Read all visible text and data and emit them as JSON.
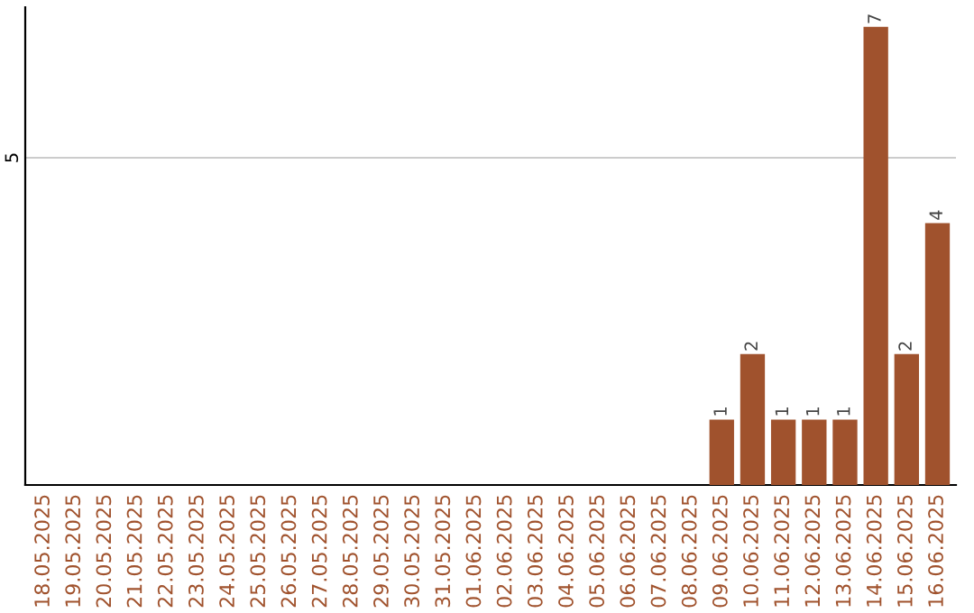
{
  "chart_data": {
    "type": "bar",
    "categories": [
      "18.05.2025",
      "19.05.2025",
      "20.05.2025",
      "21.05.2025",
      "22.05.2025",
      "23.05.2025",
      "24.05.2025",
      "25.05.2025",
      "26.05.2025",
      "27.05.2025",
      "28.05.2025",
      "29.05.2025",
      "30.05.2025",
      "31.05.2025",
      "01.06.2025",
      "02.06.2025",
      "03.06.2025",
      "04.06.2025",
      "05.06.2025",
      "06.06.2025",
      "07.06.2025",
      "08.06.2025",
      "09.06.2025",
      "10.06.2025",
      "11.06.2025",
      "12.06.2025",
      "13.06.2025",
      "14.06.2025",
      "15.06.2025",
      "16.06.2025"
    ],
    "values": [
      null,
      null,
      null,
      null,
      null,
      null,
      null,
      null,
      null,
      null,
      null,
      null,
      null,
      null,
      null,
      null,
      null,
      null,
      null,
      null,
      null,
      null,
      1,
      2,
      1,
      1,
      1,
      7,
      2,
      4
    ],
    "value_labels": [
      null,
      null,
      null,
      null,
      null,
      null,
      null,
      null,
      null,
      null,
      null,
      null,
      null,
      null,
      null,
      null,
      null,
      null,
      null,
      null,
      null,
      null,
      "1",
      "2",
      "1",
      "1",
      "1",
      "7",
      "2",
      "4"
    ],
    "color": "#a0522d",
    "ylim": [
      0,
      7.3
    ],
    "ref_lines": [
      {
        "axis": "y",
        "value": 5,
        "label": "5",
        "color": "#cccccc"
      }
    ]
  }
}
